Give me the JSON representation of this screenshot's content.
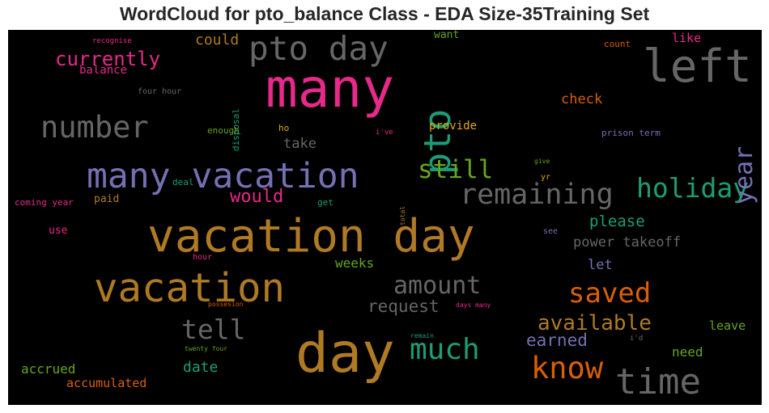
{
  "chart_data": {
    "type": "wordcloud",
    "title": "WordCloud for pto_balance Class - EDA Size-35Training Set",
    "background": "#000000",
    "words": [
      {
        "text": "vacation day",
        "color": "#b07a24"
      },
      {
        "text": "many",
        "color": "#e7298a"
      },
      {
        "text": "day",
        "color": "#b07a24"
      },
      {
        "text": "left",
        "color": "#666666"
      },
      {
        "text": "vacation",
        "color": "#b07a24"
      },
      {
        "text": "many vacation",
        "color": "#7570b3"
      },
      {
        "text": "time",
        "color": "#666666"
      },
      {
        "text": "pto day",
        "color": "#666666"
      },
      {
        "text": "pto",
        "color": "#1b9e77"
      },
      {
        "text": "remaining",
        "color": "#666666"
      },
      {
        "text": "know",
        "color": "#d95f02"
      },
      {
        "text": "number",
        "color": "#666666"
      },
      {
        "text": "holiday",
        "color": "#1b9e77"
      },
      {
        "text": "much",
        "color": "#1b9e77"
      },
      {
        "text": "saved",
        "color": "#d95f02"
      },
      {
        "text": "tell",
        "color": "#666666"
      },
      {
        "text": "amount",
        "color": "#666666"
      },
      {
        "text": "still",
        "color": "#66a61e"
      },
      {
        "text": "available",
        "color": "#b07a24"
      },
      {
        "text": "year",
        "color": "#7570b3"
      },
      {
        "text": "currently",
        "color": "#e7298a"
      },
      {
        "text": "request",
        "color": "#666666"
      },
      {
        "text": "would",
        "color": "#e7298a"
      },
      {
        "text": "earned",
        "color": "#7570b3"
      },
      {
        "text": "please",
        "color": "#1b9e77"
      },
      {
        "text": "power takeoff",
        "color": "#666666"
      },
      {
        "text": "check",
        "color": "#d95f02"
      },
      {
        "text": "could",
        "color": "#b07a24"
      },
      {
        "text": "date",
        "color": "#1b9e77"
      },
      {
        "text": "take",
        "color": "#666666"
      },
      {
        "text": "accrued",
        "color": "#66a61e"
      },
      {
        "text": "accumulated",
        "color": "#d95f02"
      },
      {
        "text": "weeks",
        "color": "#66a61e"
      },
      {
        "text": "need",
        "color": "#66a61e"
      },
      {
        "text": "let",
        "color": "#7570b3"
      },
      {
        "text": "leave",
        "color": "#66a61e"
      },
      {
        "text": "like",
        "color": "#e7298a"
      },
      {
        "text": "balance",
        "color": "#e7298a"
      },
      {
        "text": "provide",
        "color": "#e6ab02"
      },
      {
        "text": "want",
        "color": "#66a61e"
      },
      {
        "text": "paid",
        "color": "#b07a24"
      },
      {
        "text": "use",
        "color": "#e7298a"
      },
      {
        "text": "disposal",
        "color": "#1b9e77"
      },
      {
        "text": "enough",
        "color": "#66a61e"
      },
      {
        "text": "ho",
        "color": "#e6ab02"
      },
      {
        "text": "prison term",
        "color": "#7570b3"
      },
      {
        "text": "count",
        "color": "#d95f02"
      },
      {
        "text": "coming year",
        "color": "#e7298a"
      },
      {
        "text": "deal",
        "color": "#1b9e77"
      },
      {
        "text": "get",
        "color": "#1b9e77"
      },
      {
        "text": "hour",
        "color": "#e7298a"
      },
      {
        "text": "see",
        "color": "#7570b3"
      },
      {
        "text": "yr",
        "color": "#e6ab02"
      },
      {
        "text": "four hour",
        "color": "#666666"
      },
      {
        "text": "recognise",
        "color": "#e7298a"
      },
      {
        "text": "i've",
        "color": "#e7298a"
      },
      {
        "text": "give",
        "color": "#66a61e"
      },
      {
        "text": "total",
        "color": "#b07a24"
      },
      {
        "text": "twenty four",
        "color": "#66a61e"
      },
      {
        "text": "possesion",
        "color": "#d95f02"
      },
      {
        "text": "days many",
        "color": "#e7298a"
      },
      {
        "text": "remain",
        "color": "#1b9e77"
      },
      {
        "text": "i'd",
        "color": "#666666"
      }
    ]
  }
}
